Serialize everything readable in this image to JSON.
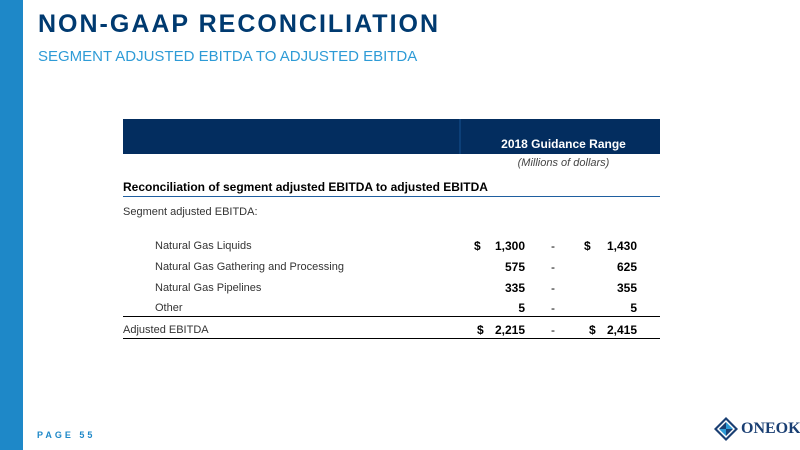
{
  "header": {
    "title": "NON-GAAP RECONCILIATION",
    "subtitle": "SEGMENT ADJUSTED EBITDA TO ADJUSTED EBITDA"
  },
  "table": {
    "column_header": "2018 Guidance Range",
    "units": "(Millions of dollars)",
    "section_heading": "Reconciliation of segment adjusted EBITDA to adjusted EBITDA",
    "group_label": "Segment adjusted EBITDA:",
    "rows": [
      {
        "label": "Natural Gas Liquids",
        "low_currency": "$",
        "low": "1,300",
        "separator": "-",
        "high_currency": "$",
        "high": "1,430"
      },
      {
        "label": "Natural Gas Gathering and Processing",
        "low": "575",
        "separator": "-",
        "high": "625"
      },
      {
        "label": "Natural Gas Pipelines",
        "low": "335",
        "separator": "-",
        "high": "355"
      },
      {
        "label": "Other",
        "low": "5",
        "separator": "-",
        "high": "5"
      }
    ],
    "total": {
      "label": "Adjusted EBITDA",
      "low_currency": "$",
      "low": "2,215",
      "separator": "-",
      "high_currency": "$",
      "high": "2,415"
    }
  },
  "footer": {
    "page_label": "PAGE 55",
    "logo_text": "ONEOK"
  },
  "colors": {
    "navy": "#003a70",
    "accent_blue": "#1e88c8",
    "header_fill": "#032d5f"
  }
}
